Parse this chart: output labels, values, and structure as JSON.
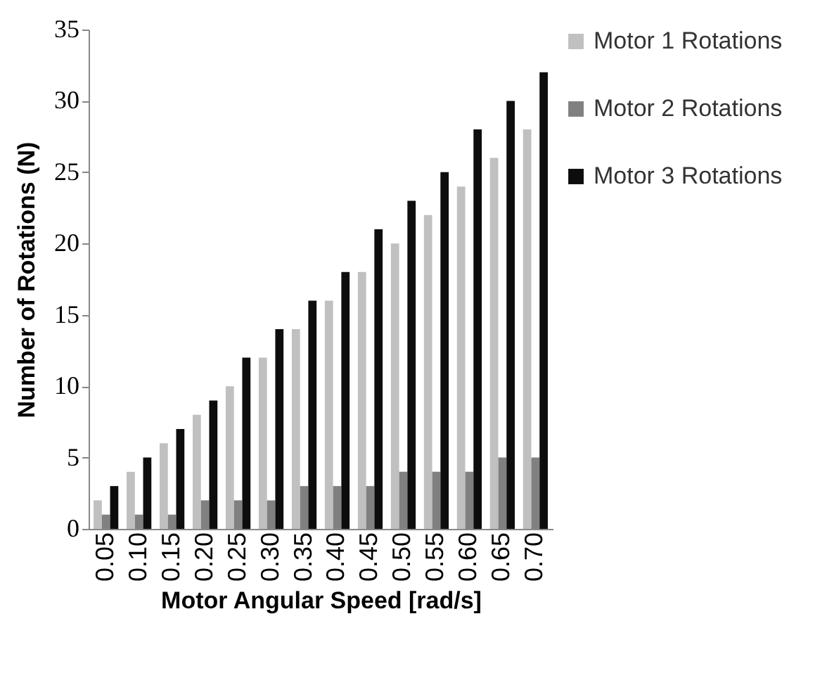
{
  "chart_data": {
    "type": "bar",
    "xlabel": "Motor Angular Speed [rad/s]",
    "ylabel": "Number of Rotations (N)",
    "categories": [
      "0.05",
      "0.10",
      "0.15",
      "0.20",
      "0.25",
      "0.30",
      "0.35",
      "0.40",
      "0.45",
      "0.50",
      "0.55",
      "0.60",
      "0.65",
      "0.70"
    ],
    "series": [
      {
        "name": "Motor 1 Rotations",
        "color": "#c0c0c0",
        "values": [
          2,
          4,
          6,
          8,
          10,
          12,
          14,
          16,
          18,
          20,
          22,
          24,
          26,
          28
        ]
      },
      {
        "name": "Motor 2 Rotations",
        "color": "#808080",
        "values": [
          1,
          1,
          1,
          2,
          2,
          2,
          3,
          3,
          3,
          4,
          4,
          4,
          5,
          5
        ]
      },
      {
        "name": "Motor 3 Rotations",
        "color": "#0d0d0d",
        "values": [
          3,
          5,
          7,
          9,
          12,
          14,
          16,
          18,
          21,
          23,
          25,
          28,
          30,
          32
        ]
      }
    ],
    "ylim": [
      0,
      35
    ],
    "yticks": [
      0,
      5,
      10,
      15,
      20,
      25,
      30,
      35
    ],
    "grid": false,
    "legend": "right"
  }
}
